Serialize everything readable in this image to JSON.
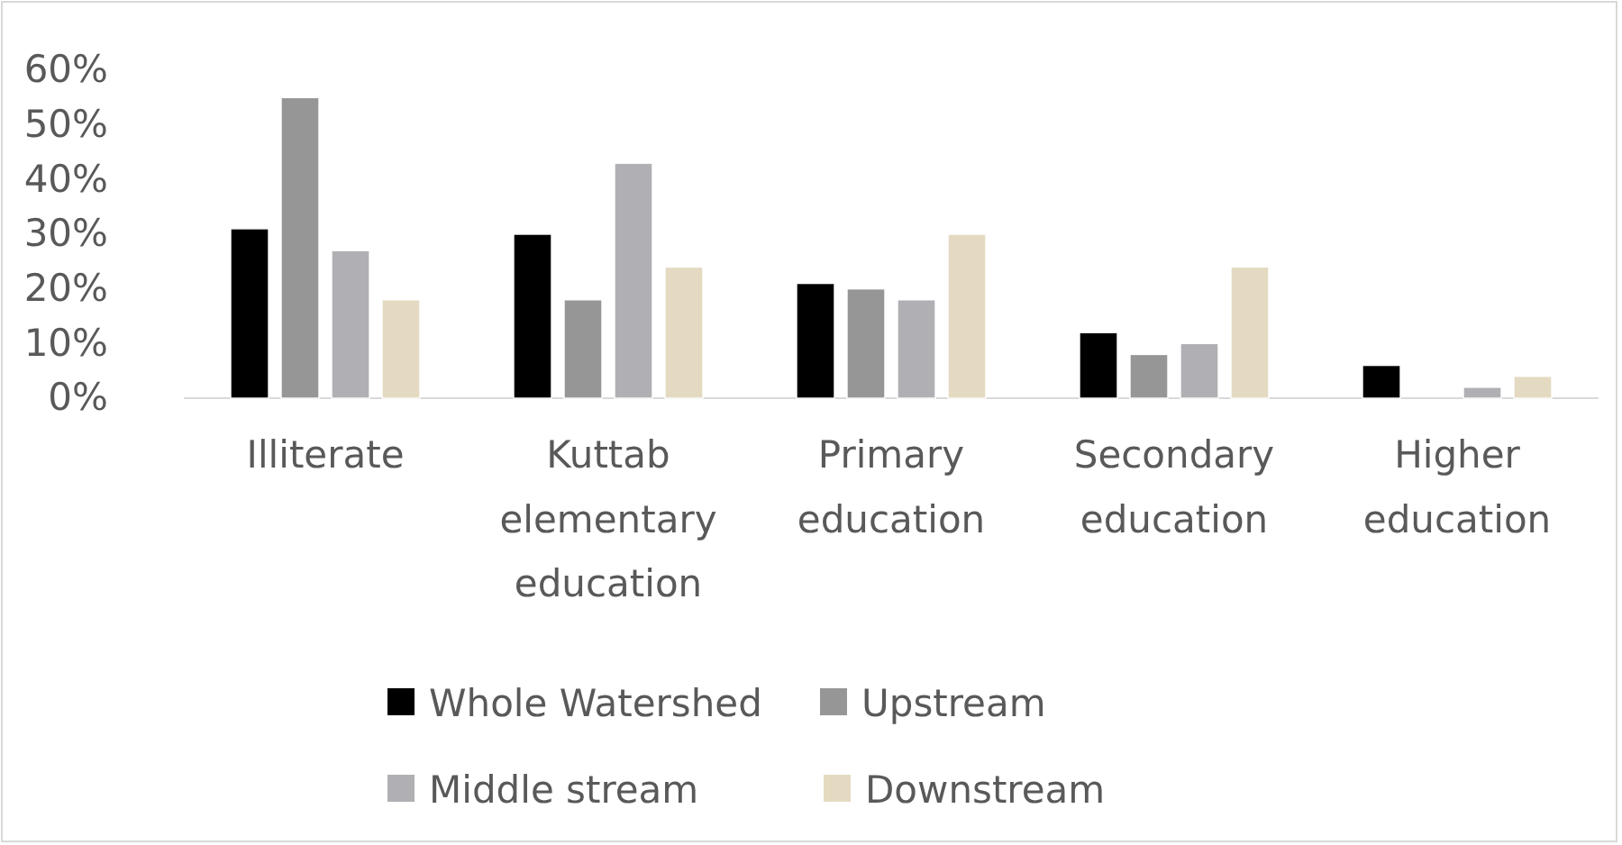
{
  "chart_data": {
    "type": "bar",
    "categories": [
      "Illiterate",
      "Kuttab elementary education",
      "Primary education",
      "Secondary education",
      "Higher education"
    ],
    "series": [
      {
        "name": "Whole Watershed",
        "color": "#000000",
        "values": [
          31,
          30,
          21,
          12,
          6
        ]
      },
      {
        "name": "Upstream",
        "color": "#969696",
        "values": [
          55,
          18,
          20,
          8,
          0
        ]
      },
      {
        "name": "Middle stream",
        "color": "#b0b0b4",
        "values": [
          27,
          43,
          18,
          10,
          2
        ]
      },
      {
        "name": "Downstream",
        "color": "#e4dac2",
        "values": [
          18,
          24,
          30,
          24,
          4
        ]
      }
    ],
    "ylim": [
      0,
      60
    ],
    "yticks": [
      {
        "value": 0,
        "label": "0%"
      },
      {
        "value": 10,
        "label": "10%"
      },
      {
        "value": 20,
        "label": "20%"
      },
      {
        "value": 30,
        "label": "30%"
      },
      {
        "value": 40,
        "label": "40%"
      },
      {
        "value": 50,
        "label": "50%"
      },
      {
        "value": 60,
        "label": "60%"
      }
    ],
    "grid": false,
    "legend": "bottom"
  }
}
